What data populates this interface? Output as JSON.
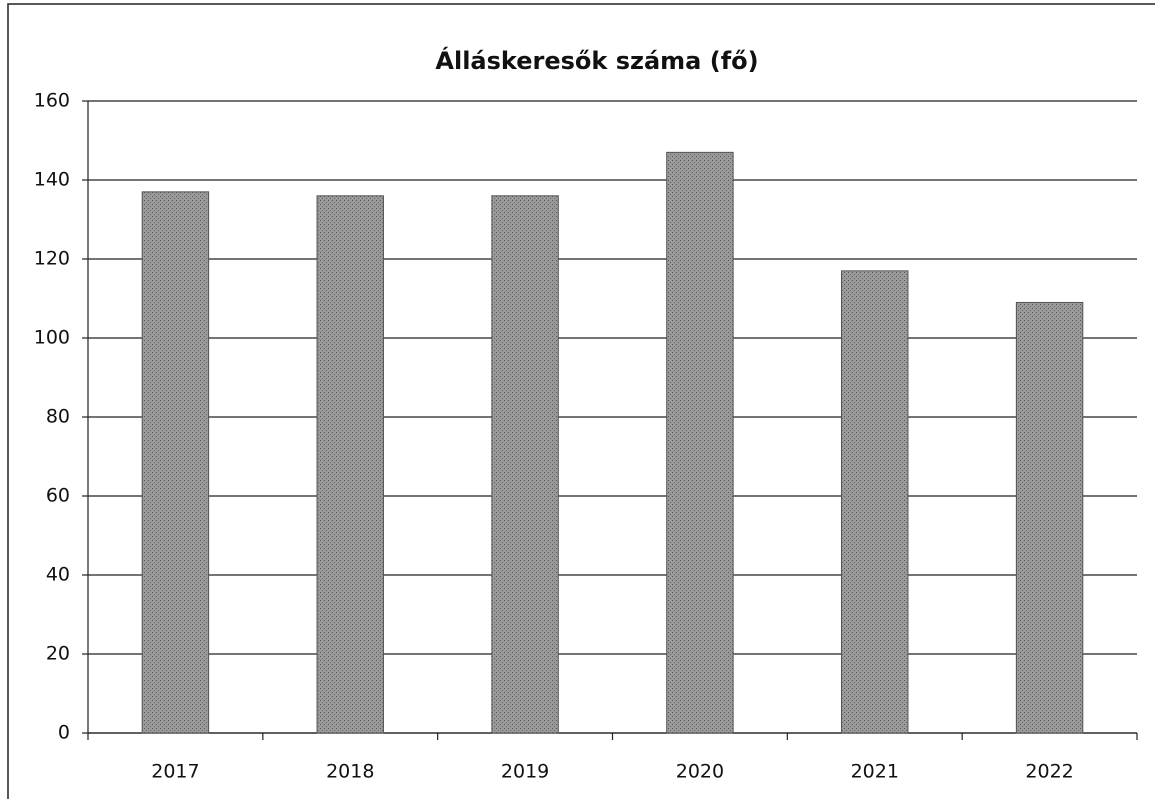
{
  "chart_data": {
    "type": "bar",
    "title": "Álláskeresők száma (fő)",
    "categories": [
      "2017",
      "2018",
      "2019",
      "2020",
      "2021",
      "2022"
    ],
    "values": [
      137,
      136,
      136,
      147,
      117,
      109
    ],
    "color": "#8c8c8c",
    "ylim": [
      0,
      160
    ],
    "yticks": [
      0,
      20,
      40,
      60,
      80,
      100,
      120,
      140,
      160
    ],
    "grid": true
  }
}
